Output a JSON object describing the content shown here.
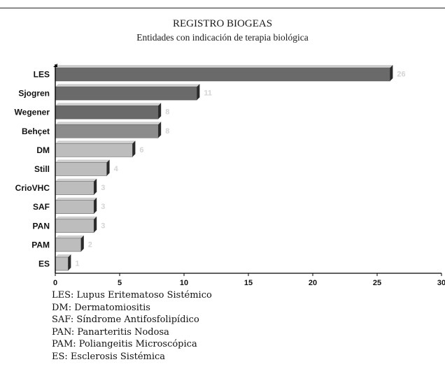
{
  "header": {
    "title": "REGISTRO BIOGEAS",
    "subtitle": "Entidades con indicación de terapia biológica"
  },
  "chart_data": {
    "type": "bar",
    "orientation": "horizontal",
    "title": "REGISTRO BIOGEAS",
    "subtitle": "Entidades con indicación de terapia biológica",
    "xlabel": "",
    "ylabel": "",
    "categories": [
      "LES",
      "Sjogren",
      "Wegener",
      "Behçet",
      "DM",
      "Still",
      "CrioVHC",
      "SAF",
      "PAN",
      "PAM",
      "ES"
    ],
    "values": [
      26,
      11,
      8,
      8,
      6,
      4,
      3,
      3,
      3,
      2,
      1
    ],
    "data_labels": [
      "26",
      "11",
      "8",
      "8",
      "6",
      "4",
      "3",
      "3",
      "3",
      "2",
      "1"
    ],
    "xlim": [
      0,
      30
    ],
    "xticks": [
      0,
      5,
      10,
      15,
      20,
      25,
      30
    ],
    "grid": false,
    "colors": {
      "dark": "#6a6a6a",
      "medium": "#8c8c8c",
      "light": "#bdbdbd",
      "bar_end": "#2a2a2a",
      "data_label": "#d4d4d4"
    },
    "bar_shades": [
      "dark",
      "dark",
      "dark",
      "medium",
      "light",
      "light",
      "light",
      "light",
      "light",
      "light",
      "light"
    ]
  },
  "legend": [
    "LES: Lupus Eritematoso Sistémico",
    "DM: Dermatomiositis",
    "SAF: Síndrome Antifosfolipídico",
    "PAN: Panarteritis Nodosa",
    "PAM: Poliangeitis Microscópica",
    "ES: Esclerosis Sistémica"
  ]
}
